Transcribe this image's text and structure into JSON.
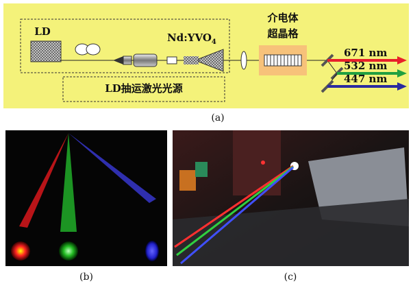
{
  "panel_a": {
    "labels": {
      "ld": "LD",
      "crystal": "Nd:YVO",
      "crystal_sub": "4",
      "superlattice_line1": "介电体",
      "superlattice_line2": "超晶格",
      "pump_source": "LD抽运激光光源"
    },
    "outputs": [
      {
        "wavelength": "671 nm",
        "color": "#e8202a"
      },
      {
        "wavelength": "532 nm",
        "color": "#20a040"
      },
      {
        "wavelength": "447 nm",
        "color": "#2a2aa0"
      }
    ],
    "caption": "(a)"
  },
  "panel_b": {
    "caption": "(b)"
  },
  "panel_c": {
    "caption": "(c)"
  }
}
